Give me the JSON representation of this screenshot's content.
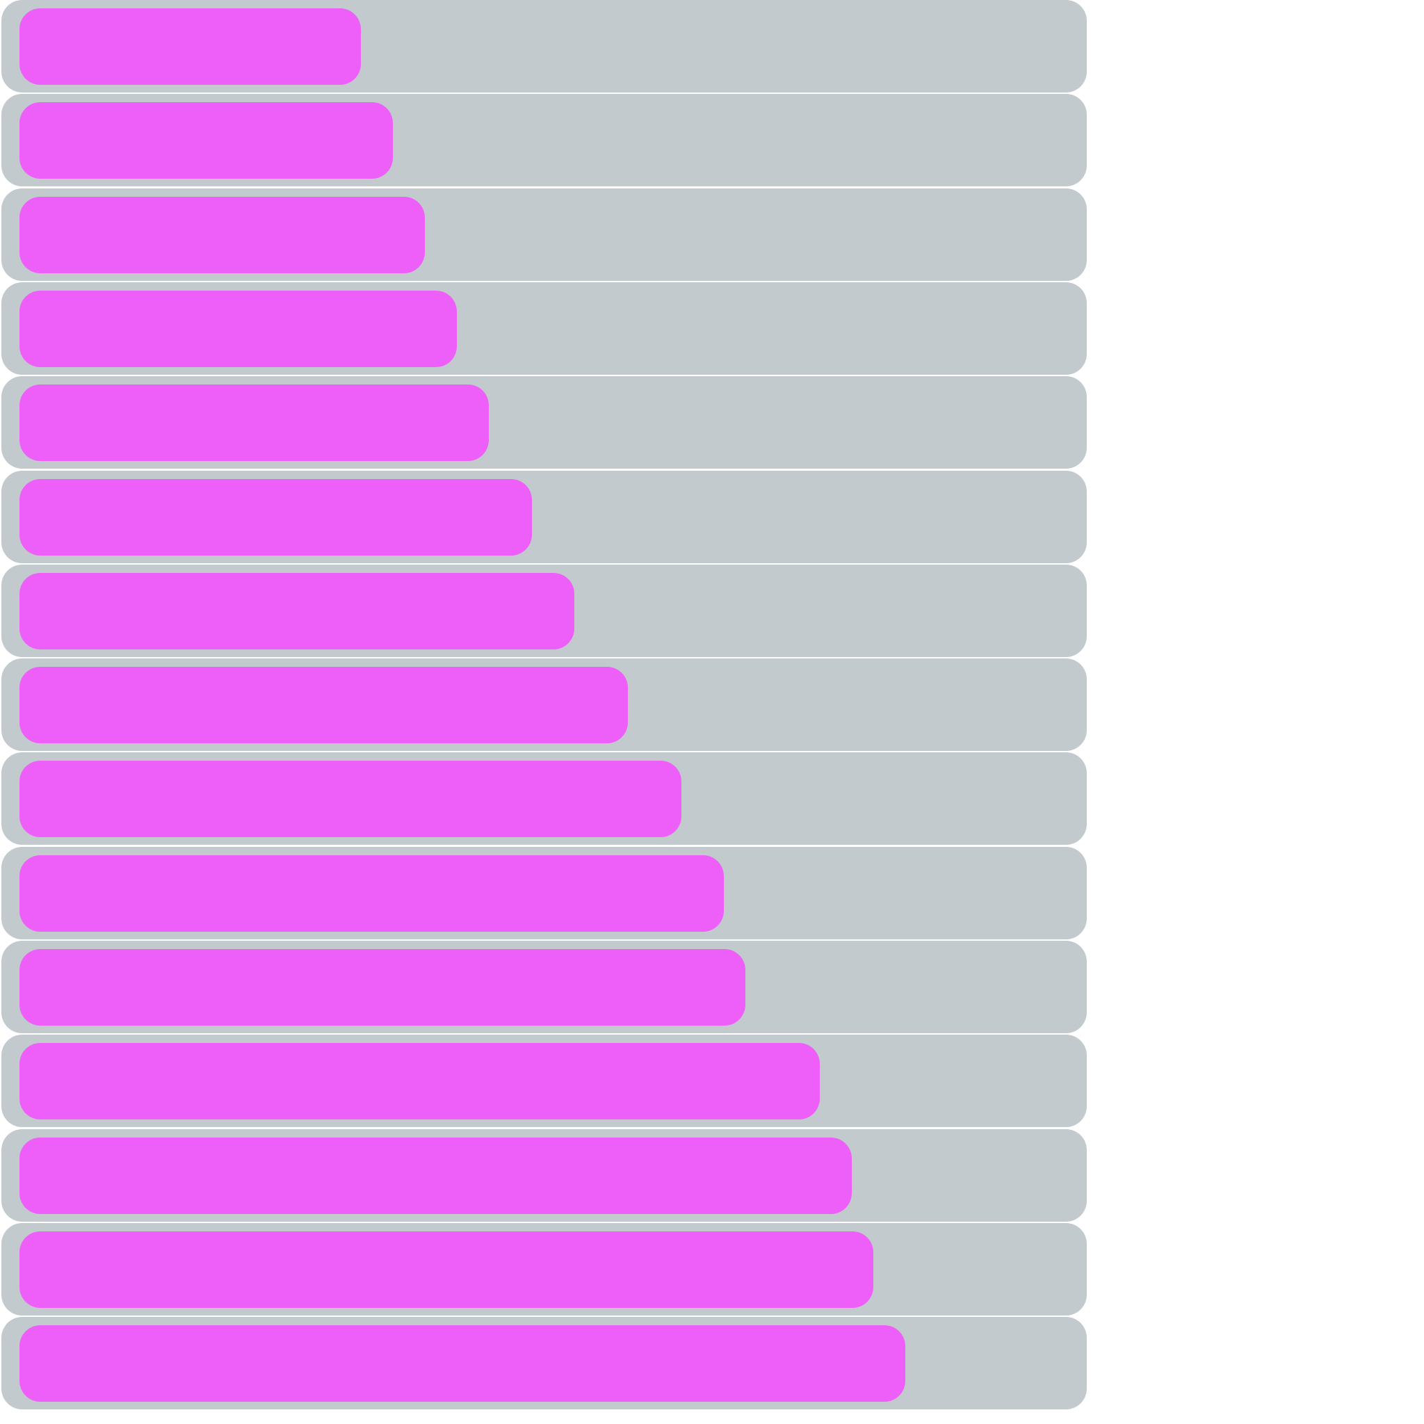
{
  "colors": {
    "track": "#c3cacd",
    "fill": "#ee5ef9",
    "background": "#ffffff"
  },
  "bars": [
    {
      "progress": 0.32
    },
    {
      "progress": 0.35
    },
    {
      "progress": 0.38
    },
    {
      "progress": 0.41
    },
    {
      "progress": 0.44
    },
    {
      "progress": 0.48
    },
    {
      "progress": 0.52
    },
    {
      "progress": 0.57
    },
    {
      "progress": 0.62
    },
    {
      "progress": 0.66
    },
    {
      "progress": 0.68
    },
    {
      "progress": 0.75
    },
    {
      "progress": 0.78
    },
    {
      "progress": 0.8
    },
    {
      "progress": 0.83
    }
  ]
}
